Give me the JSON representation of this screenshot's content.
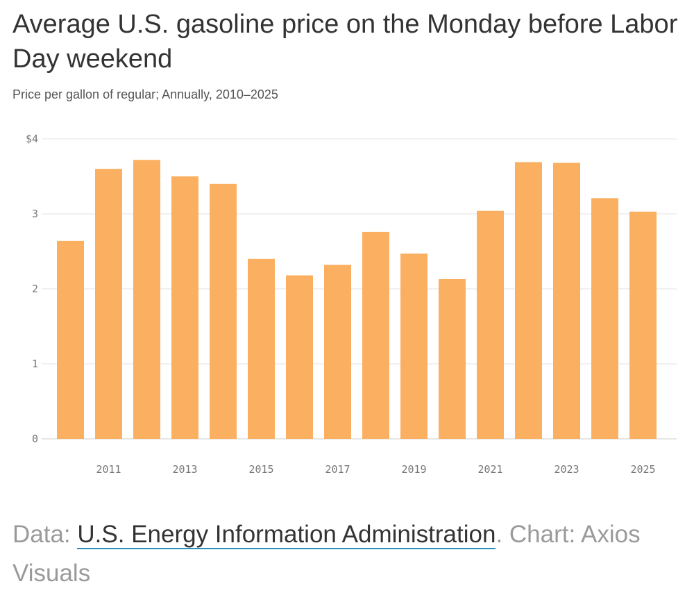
{
  "chart_data": {
    "type": "bar",
    "title": "Average U.S. gasoline price on the Monday before Labor Day weekend",
    "subtitle": "Price per gallon of regular; Annually, 2010–2025",
    "categories": [
      "2010",
      "2011",
      "2012",
      "2013",
      "2014",
      "2015",
      "2016",
      "2017",
      "2018",
      "2019",
      "2020",
      "2021",
      "2022",
      "2023",
      "2024",
      "2025"
    ],
    "values": [
      2.64,
      3.6,
      3.72,
      3.5,
      3.4,
      2.4,
      2.18,
      2.32,
      2.76,
      2.47,
      2.13,
      3.04,
      3.69,
      3.68,
      3.21,
      3.03
    ],
    "x_tick_labels": [
      "2011",
      "2013",
      "2015",
      "2017",
      "2019",
      "2021",
      "2023",
      "2025"
    ],
    "y_tick_labels": [
      "0",
      "1",
      "2",
      "3",
      "$4"
    ],
    "y_ticks": [
      0,
      1,
      2,
      3,
      4
    ],
    "ylim": [
      0,
      4
    ],
    "grid": true,
    "bar_color": "#fbb061",
    "xlabel": "",
    "ylabel": ""
  },
  "footer": {
    "data_prefix": "Data: ",
    "source_name": "U.S. Energy Information Administration",
    "chart_credit": ". Chart: Axios Visuals"
  },
  "colors": {
    "grid": "#e3e3e3",
    "axis": "#cccccc",
    "link_underline": "#2a8fb8"
  }
}
